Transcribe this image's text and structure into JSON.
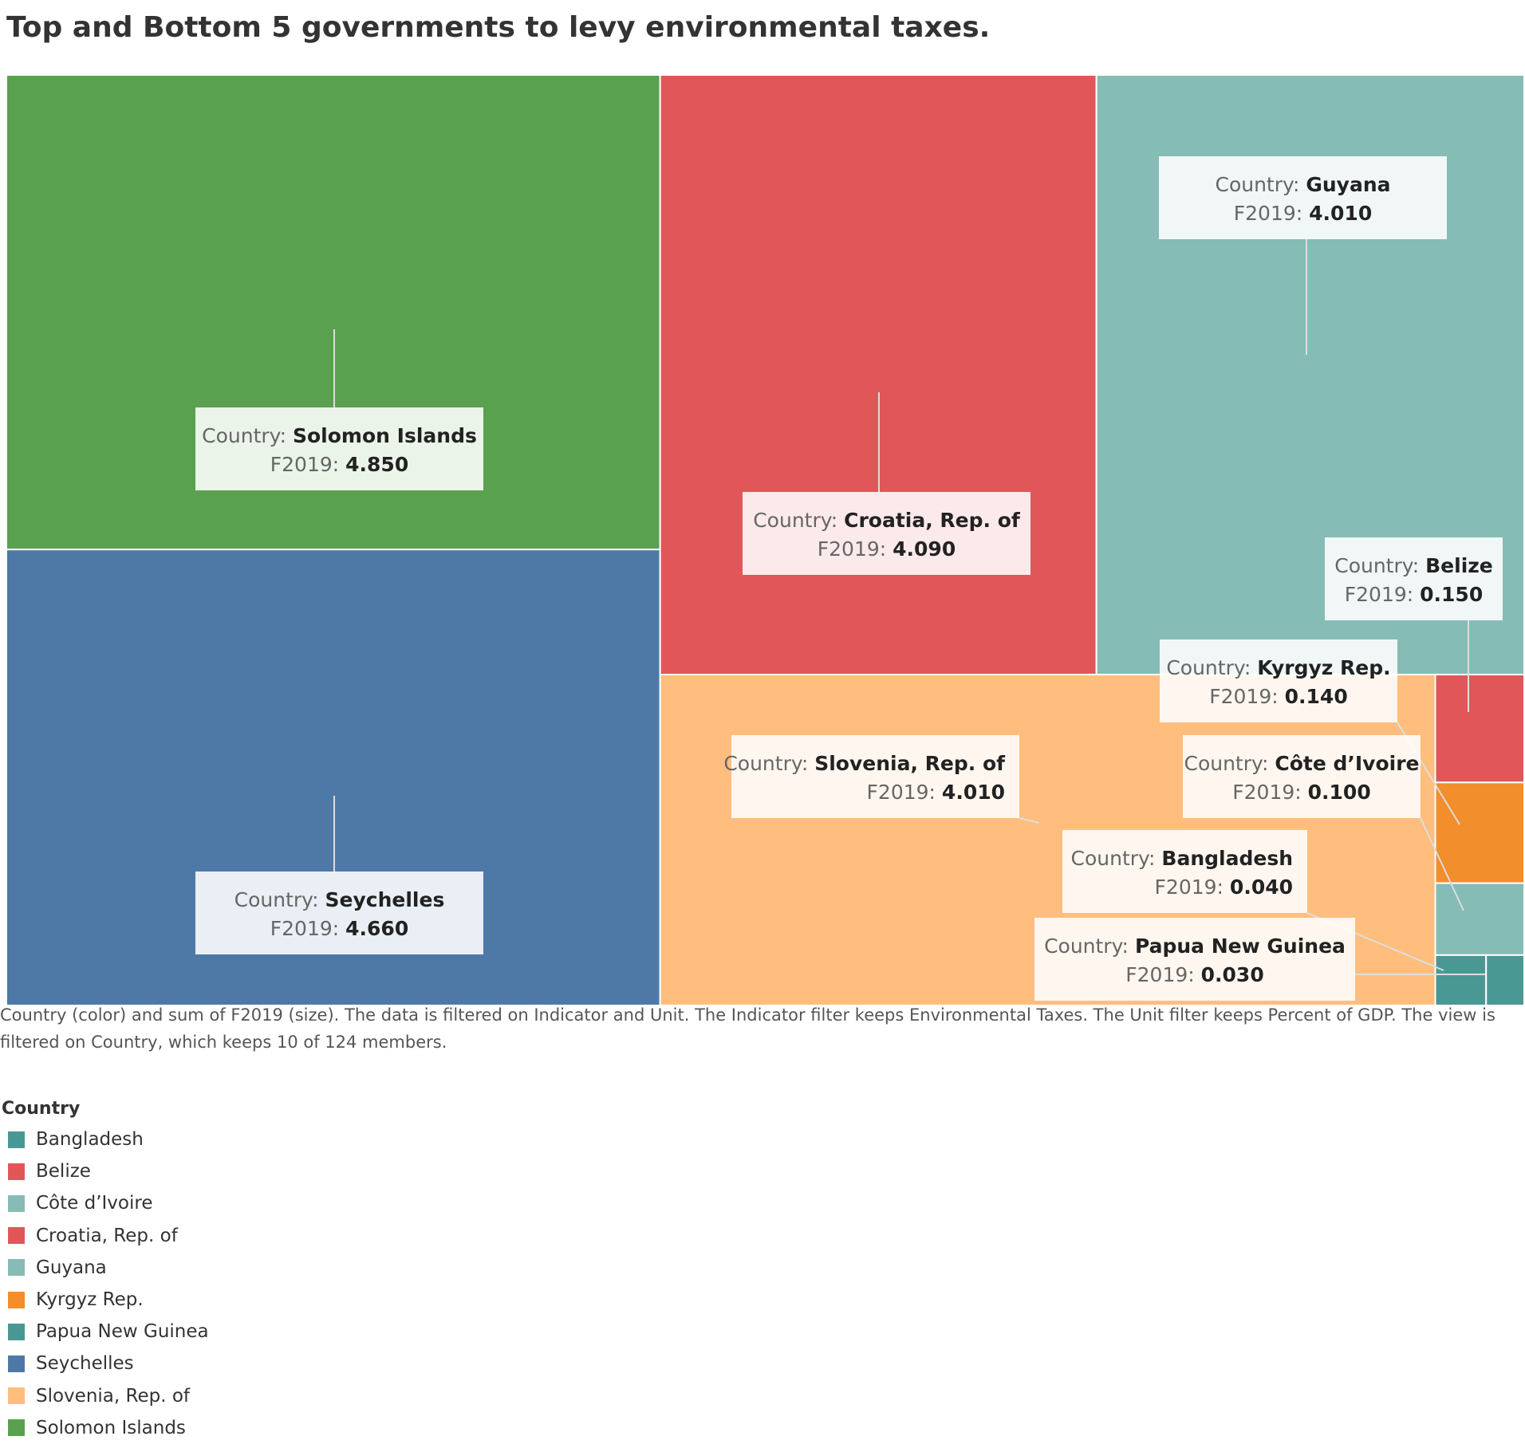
{
  "title": "Top and Bottom 5 governments to levy environmental taxes.",
  "caption": "Country (color) and sum of F2019 (size). The data is filtered on Indicator and Unit. The Indicator filter keeps Environmental Taxes. The Unit filter keeps Percent of GDP. The view is filtered on Country, which keeps 10 of 124 members.",
  "tooltip_labels": {
    "category": "Country:",
    "measure": "F2019:"
  },
  "legend": {
    "title": "Country",
    "items": [
      {
        "label": "Bangladesh",
        "color": "#499894"
      },
      {
        "label": "Belize",
        "color": "#E15759"
      },
      {
        "label": "Côte d’Ivoire",
        "color": "#86BCB6"
      },
      {
        "label": "Croatia, Rep. of",
        "color": "#E15759"
      },
      {
        "label": "Guyana",
        "color": "#86BCB6"
      },
      {
        "label": "Kyrgyz Rep.",
        "color": "#F28E2B"
      },
      {
        "label": "Papua New Guinea",
        "color": "#499894"
      },
      {
        "label": "Seychelles",
        "color": "#4E79A7"
      },
      {
        "label": "Slovenia, Rep. of",
        "color": "#FFBE7D"
      },
      {
        "label": "Solomon Islands",
        "color": "#59A14F"
      }
    ]
  },
  "chart_data": {
    "type": "treemap",
    "title": "Top and Bottom 5 governments to levy environmental taxes.",
    "size_measure": "F2019",
    "color_dimension": "Country",
    "items": [
      {
        "country": "Solomon Islands",
        "value": 4.85,
        "label_value": "4.850",
        "color": "#59A14F"
      },
      {
        "country": "Seychelles",
        "value": 4.66,
        "label_value": "4.660",
        "color": "#4E79A7"
      },
      {
        "country": "Croatia, Rep. of",
        "value": 4.09,
        "label_value": "4.090",
        "color": "#E15759"
      },
      {
        "country": "Guyana",
        "value": 4.01,
        "label_value": "4.010",
        "color": "#86BCB6"
      },
      {
        "country": "Slovenia, Rep. of",
        "value": 4.01,
        "label_value": "4.010",
        "color": "#FFBE7D"
      },
      {
        "country": "Belize",
        "value": 0.15,
        "label_value": "0.150",
        "color": "#E15759"
      },
      {
        "country": "Kyrgyz Rep.",
        "value": 0.14,
        "label_value": "0.140",
        "color": "#F28E2B"
      },
      {
        "country": "Côte d’Ivoire",
        "value": 0.1,
        "label_value": "0.100",
        "color": "#86BCB6"
      },
      {
        "country": "Bangladesh",
        "value": 0.04,
        "label_value": "0.040",
        "color": "#499894"
      },
      {
        "country": "Papua New Guinea",
        "value": 0.03,
        "label_value": "0.030",
        "color": "#499894"
      }
    ]
  }
}
